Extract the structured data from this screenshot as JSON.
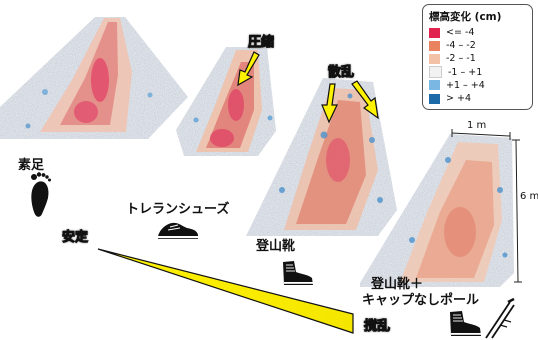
{
  "legend": {
    "title": "標高変化 (cm)",
    "items": [
      {
        "label": "<= -4",
        "color": "#e0234f"
      },
      {
        "label": "-4 – -2",
        "color": "#e8825f"
      },
      {
        "label": "-2 – -1",
        "color": "#f3c1a6"
      },
      {
        "label": "-1 – +1",
        "color": "#f2f2f2"
      },
      {
        "label": "+1 – +4",
        "color": "#7ab7e2"
      },
      {
        "label": "> +4",
        "color": "#1d6aa8"
      }
    ]
  },
  "conditions": [
    {
      "label": "素足",
      "icon": "bare-foot-icon"
    },
    {
      "label": "トレランシューズ",
      "icon": "trail-shoe-icon"
    },
    {
      "label": "登山靴",
      "icon": "hiking-boot-icon"
    },
    {
      "label": "登山靴＋",
      "label2": "キャップなしポール",
      "icon": "boot-and-poles-icon"
    }
  ],
  "annotations": {
    "compression": "圧縮",
    "scatter": "散乱"
  },
  "scale": {
    "width": "1 m",
    "length": "6 m"
  },
  "gradient": {
    "stable": "安定",
    "disturbed": "撹乱",
    "color": "#fff200"
  }
}
